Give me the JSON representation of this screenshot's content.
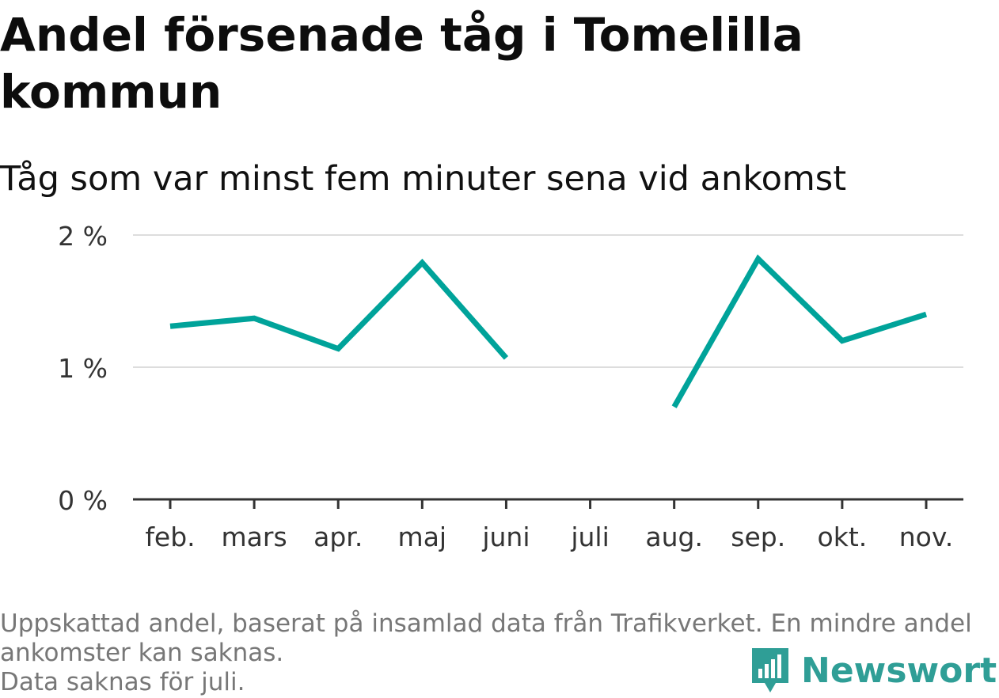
{
  "title": "Andel försenade tåg i Tomelilla kommun",
  "subtitle": "Tåg som var minst fem minuter sena vid ankomst",
  "footer": {
    "note": "Uppskattad andel, baserat på insamlad data från Trafikverket. En mindre andel ankomster kan saknas.",
    "missing": "Data saknas för juli."
  },
  "brand": {
    "name": "Newsworthy",
    "color": "#2f9e96"
  },
  "chart_data": {
    "type": "line",
    "categories": [
      "feb.",
      "mars",
      "apr.",
      "maj",
      "juni",
      "juli",
      "aug.",
      "sep.",
      "okt.",
      "nov."
    ],
    "series": [
      {
        "color": "#00a39a",
        "values": [
          1.31,
          1.37,
          1.14,
          1.79,
          1.07,
          null,
          0.7,
          1.82,
          1.2,
          1.4
        ]
      }
    ],
    "yticks": [
      {
        "value": 0,
        "label": "0 %"
      },
      {
        "value": 1,
        "label": "1 %"
      },
      {
        "value": 2,
        "label": "2 %"
      }
    ],
    "ylim": [
      0,
      2
    ],
    "grid": true,
    "legend": "none"
  }
}
